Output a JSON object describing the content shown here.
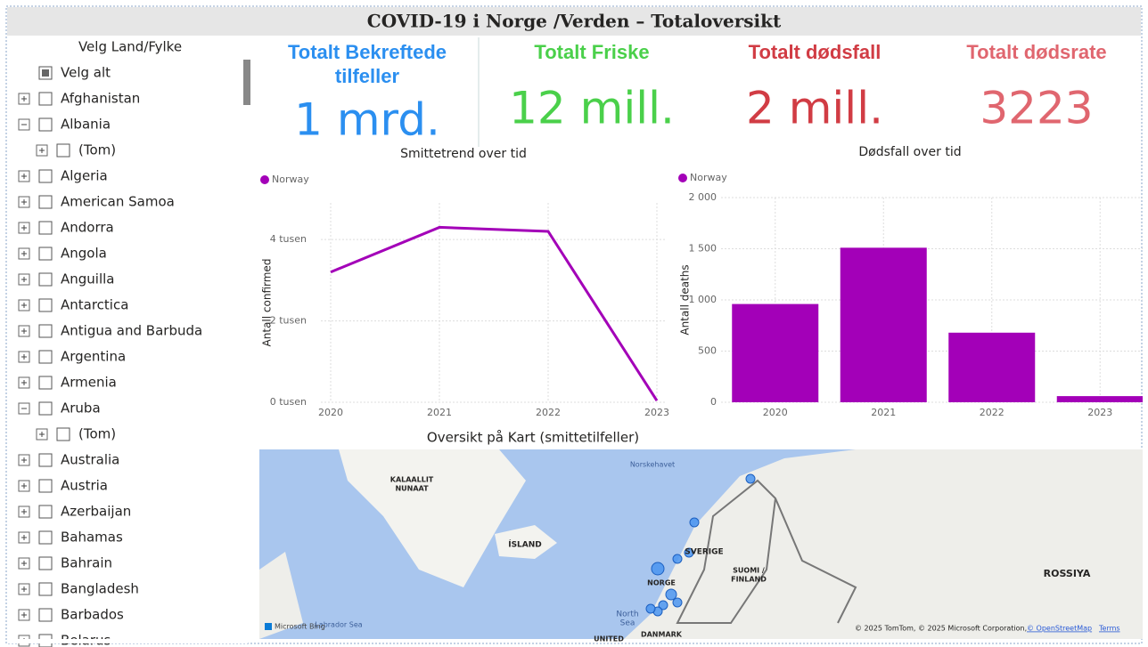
{
  "header": {
    "title": "COVID-19 i Norge /Verden – Totaloversikt"
  },
  "slicer": {
    "title": "Velg Land/Fylke",
    "select_all": "Velg alt",
    "items": [
      {
        "label": "Afghanistan"
      },
      {
        "label": "Albania",
        "children": [
          "(Tom)"
        ]
      },
      {
        "label": "Algeria"
      },
      {
        "label": "American Samoa"
      },
      {
        "label": "Andorra"
      },
      {
        "label": "Angola"
      },
      {
        "label": "Anguilla"
      },
      {
        "label": "Antarctica"
      },
      {
        "label": "Antigua and Barbuda"
      },
      {
        "label": "Argentina"
      },
      {
        "label": "Armenia"
      },
      {
        "label": "Aruba",
        "children": [
          "(Tom)"
        ]
      },
      {
        "label": "Australia"
      },
      {
        "label": "Austria"
      },
      {
        "label": "Azerbaijan"
      },
      {
        "label": "Bahamas"
      },
      {
        "label": "Bahrain"
      },
      {
        "label": "Bangladesh"
      },
      {
        "label": "Barbados"
      },
      {
        "label": "Belarus"
      }
    ]
  },
  "cards": [
    {
      "title": [
        "Totalt Bekreftede",
        "tilfeller"
      ],
      "value": "1 mrd.",
      "color": "#2b8ff0"
    },
    {
      "title": [
        "Totalt Friske"
      ],
      "value": "12 mill.",
      "color": "#4ad04a"
    },
    {
      "title": [
        "Totalt dødsfall"
      ],
      "value": "2 mill.",
      "color": "#d13c44"
    },
    {
      "title": [
        "Totalt dødsrate"
      ],
      "value": "3223",
      "color": "#e0666f"
    }
  ],
  "chart_data": [
    {
      "type": "line",
      "title": "Smittetrend over tid",
      "y_label": "Antall confirmed",
      "categories": [
        "2020",
        "2021",
        "2022",
        "2023"
      ],
      "series": [
        {
          "name": "Norway",
          "color": "#a300b8",
          "values": [
            3200,
            4300,
            4200,
            40
          ]
        }
      ],
      "ylim": [
        0,
        4900
      ],
      "yticks": [
        {
          "value": 0,
          "label": "0 tusen"
        },
        {
          "value": 2000,
          "label": "2 tusen"
        },
        {
          "value": 4000,
          "label": "4 tusen"
        }
      ],
      "grid": true
    },
    {
      "type": "bar",
      "title": "Dødsfall over tid",
      "y_label": "Antall deaths",
      "categories": [
        "2020",
        "2021",
        "2022",
        "2023"
      ],
      "series": [
        {
          "name": "Norway",
          "color": "#a300b8",
          "values": [
            960,
            1510,
            680,
            60
          ]
        }
      ],
      "ylim": [
        0,
        2000
      ],
      "yticks": [
        0,
        500,
        {
          "value": 1000,
          "label": "1 000"
        },
        {
          "value": 1500,
          "label": "1 500"
        },
        {
          "value": 2000,
          "label": "2 000"
        }
      ],
      "grid": true
    }
  ],
  "map": {
    "title": "Oversikt på Kart (smittetilfeller)",
    "labels": [
      "Norskehavet",
      "KALAALLIT",
      "NUNAAT",
      "ÍSLAND",
      "SVERIGE",
      "NORGE",
      "SUOMI /",
      "FINLAND",
      "ROSSIYA",
      "North",
      "Sea",
      "DANMARK",
      "UNITED",
      "Labrador Sea"
    ],
    "logo": "Microsoft Bing",
    "attribution": "© 2025 TomTom, © 2025 Microsoft Corporation,",
    "osm": "© OpenStreetMap",
    "terms": "Terms"
  }
}
